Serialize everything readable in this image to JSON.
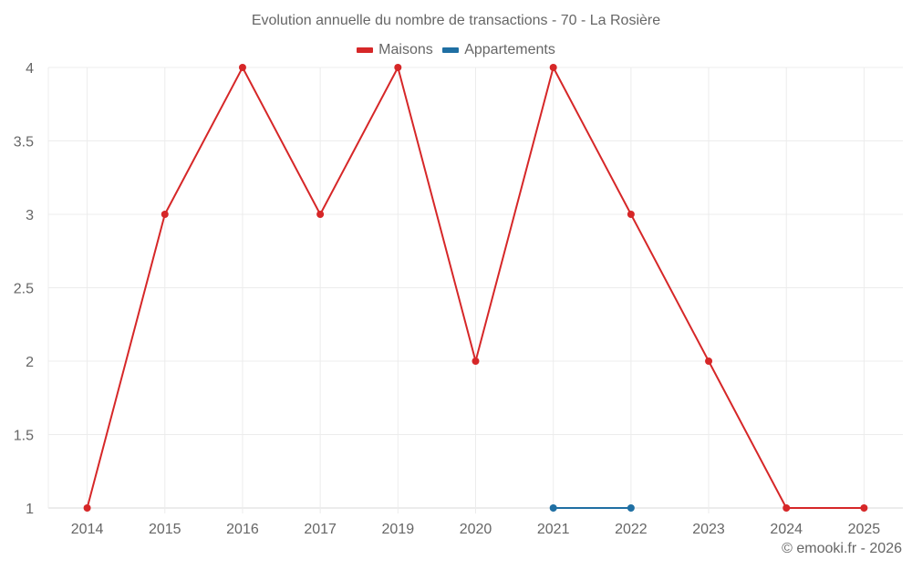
{
  "chart_data": {
    "type": "line",
    "title": "Evolution annuelle du nombre de transactions - 70 - La Rosière",
    "xlabel": "",
    "ylabel": "",
    "categories": [
      "2014",
      "2015",
      "2016",
      "2017",
      "2019",
      "2020",
      "2021",
      "2022",
      "2023",
      "2024",
      "2025"
    ],
    "series": [
      {
        "name": "Maisons",
        "color": "#d62728",
        "values": [
          1,
          3,
          4,
          3,
          4,
          2,
          4,
          3,
          2,
          1,
          1
        ]
      },
      {
        "name": "Appartements",
        "color": "#1f6fa3",
        "values": [
          null,
          null,
          null,
          null,
          null,
          null,
          1,
          1,
          null,
          null,
          null
        ]
      }
    ],
    "ylim": [
      1,
      4
    ],
    "yticks": [
      "1",
      "1.5",
      "2",
      "2.5",
      "3",
      "3.5",
      "4"
    ],
    "grid": true,
    "legend_position": "top"
  },
  "legend": {
    "items": [
      {
        "label": "Maisons",
        "color": "#d62728"
      },
      {
        "label": "Appartements",
        "color": "#1f6fa3"
      }
    ]
  },
  "credit": "© emooki.fr - 2026"
}
